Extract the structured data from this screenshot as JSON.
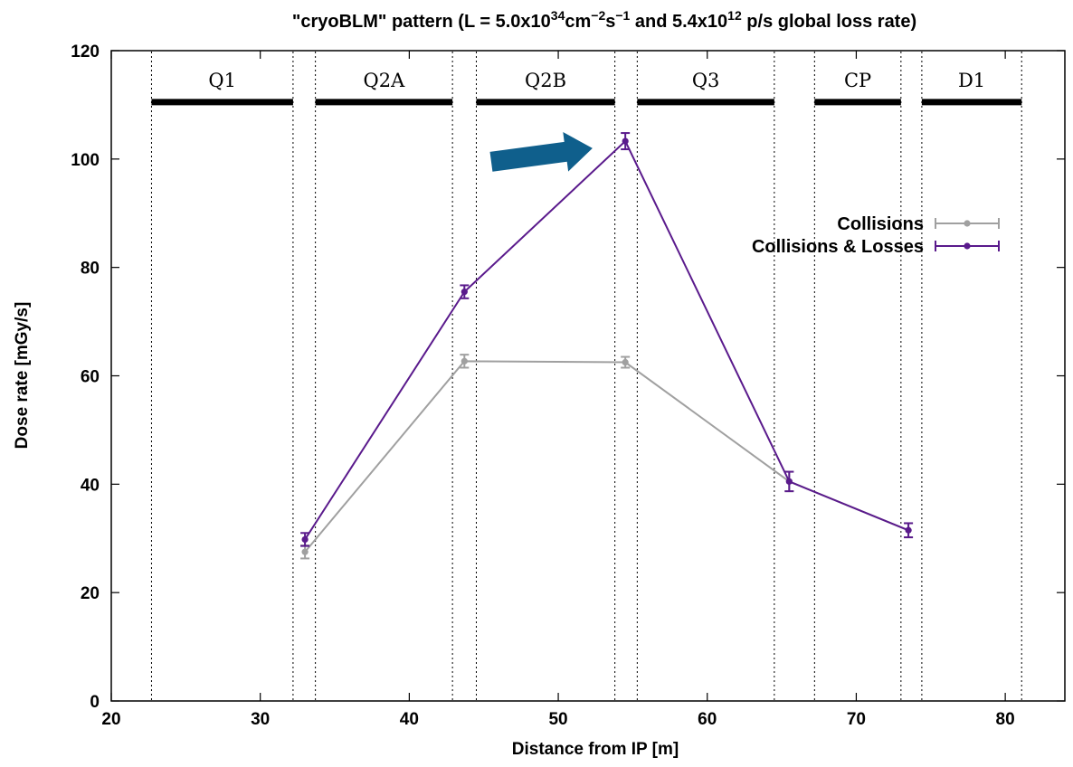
{
  "chart_data": {
    "type": "line",
    "title": {
      "prefix": "\"cryoBLM\" pattern (L = 5.0x10",
      "sup1": "34",
      "mid1": "cm",
      "sup2": "−2",
      "mid2": "s",
      "sup3": "−1",
      "mid3": " and 5.4x10",
      "sup4": "12",
      "suffix": " p/s global loss rate)"
    },
    "xlabel": "Distance from IP [m]",
    "ylabel": "Dose rate [mGy/s]",
    "xlim": [
      20,
      84
    ],
    "ylim": [
      0,
      120
    ],
    "xticks": [
      20,
      30,
      40,
      50,
      60,
      70,
      80
    ],
    "yticks": [
      0,
      20,
      40,
      60,
      80,
      100,
      120
    ],
    "grid": false,
    "legend_position": "top-right",
    "series": [
      {
        "name": "Collisions",
        "color": "#a0a0a0",
        "x": [
          33.0,
          43.7,
          54.5,
          65.5,
          73.5
        ],
        "y": [
          27.5,
          62.7,
          62.5,
          40.5,
          31.5
        ],
        "err": [
          1.2,
          1.2,
          1.0,
          1.8,
          1.3
        ]
      },
      {
        "name": "Collisions & Losses",
        "color": "#5a1a8c",
        "x": [
          33.0,
          43.7,
          54.5,
          65.5,
          73.5
        ],
        "y": [
          29.8,
          75.5,
          103.3,
          40.5,
          31.5
        ],
        "err": [
          1.2,
          1.2,
          1.5,
          1.8,
          1.3
        ]
      }
    ],
    "magnets": [
      {
        "label": "Q1",
        "start": 22.7,
        "end": 32.2
      },
      {
        "label": "Q2A",
        "start": 33.7,
        "end": 42.9
      },
      {
        "label": "Q2B",
        "start": 44.5,
        "end": 53.8
      },
      {
        "label": "Q3",
        "start": 55.3,
        "end": 64.5
      },
      {
        "label": "CP",
        "start": 67.2,
        "end": 73.0
      },
      {
        "label": "D1",
        "start": 74.4,
        "end": 81.1
      }
    ],
    "magnet_bar_y": 110.5,
    "annotation": {
      "type": "arrow",
      "color": "#0f5f8c",
      "from": [
        45.5,
        99.5
      ],
      "to": [
        52.3,
        102.0
      ]
    }
  }
}
